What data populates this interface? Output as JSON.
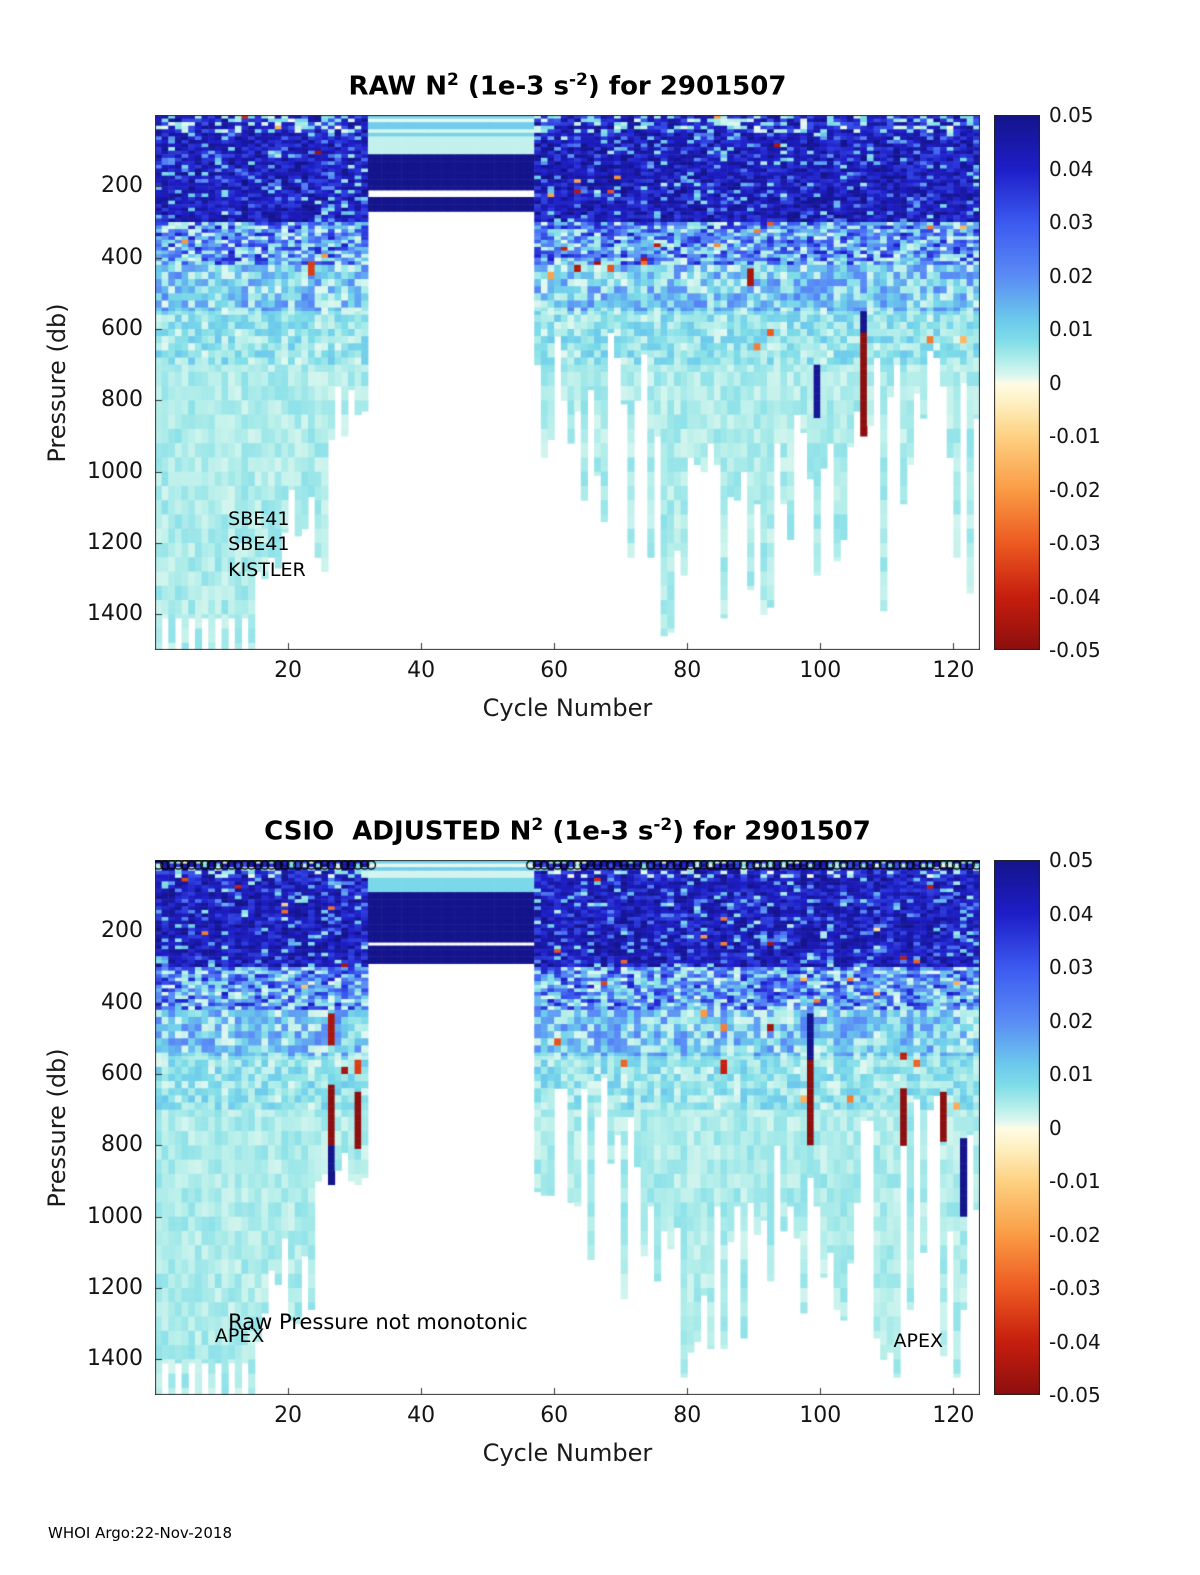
{
  "footer": {
    "text": "WHOI Argo:22-Nov-2018"
  },
  "colormap": {
    "vmin": -0.05,
    "vmax": 0.05,
    "stops": [
      {
        "v": 0.05,
        "color": "#14148C"
      },
      {
        "v": 0.04,
        "color": "#1E1EC8"
      },
      {
        "v": 0.03,
        "color": "#3C5AF0"
      },
      {
        "v": 0.02,
        "color": "#5A8CF5"
      },
      {
        "v": 0.012,
        "color": "#6CC8EC"
      },
      {
        "v": 0.008,
        "color": "#7FDDE8"
      },
      {
        "v": 0.004,
        "color": "#B4EEEA"
      },
      {
        "v": 0.001,
        "color": "#E2F8F0"
      },
      {
        "v": 0.0,
        "color": "#FFFCE6"
      },
      {
        "v": -0.004,
        "color": "#FEEFBE"
      },
      {
        "v": -0.01,
        "color": "#FDD182"
      },
      {
        "v": -0.02,
        "color": "#FA9B45"
      },
      {
        "v": -0.03,
        "color": "#ED5A21"
      },
      {
        "v": -0.04,
        "color": "#C61E0E"
      },
      {
        "v": -0.05,
        "color": "#8C0E0E"
      }
    ]
  },
  "chart_data": [
    {
      "type": "heatmap",
      "title_parts": {
        "pre": "RAW N",
        "sup1": "2",
        "mid": " (1e-3 s",
        "sup2": "-2",
        "post": ") for 2901507"
      },
      "xlabel": "Cycle Number",
      "ylabel": "Pressure (db)",
      "xlim": [
        0,
        124
      ],
      "ylim": [
        0,
        1500
      ],
      "y_axis_reversed": true,
      "grid": false,
      "x_ticks": [
        20,
        40,
        60,
        80,
        100,
        120
      ],
      "y_ticks": [
        200,
        400,
        600,
        800,
        1000,
        1200,
        1400
      ],
      "colorbar_ticks": [
        0.05,
        0.04,
        0.03,
        0.02,
        0.01,
        0,
        -0.01,
        -0.02,
        -0.03,
        -0.04,
        -0.05
      ],
      "legend_position": "right-colorbar",
      "annotations": [
        {
          "text": "SBE41",
          "x": 11,
          "pressure": 1135
        },
        {
          "text": "SBE41",
          "x": 11,
          "pressure": 1207
        },
        {
          "text": "KISTLER",
          "x": 11,
          "pressure": 1278
        }
      ],
      "top_marker_ranges": [],
      "value_summary": {
        "surface_0_300db": "mostly 0.035 to 0.05 (dark blue) with sparse pale and rare negative cells",
        "mid_300_550db": "0.005 to 0.04 speckled blues",
        "deep_700_1500db": "0.002 to 0.007 pale cyan, profile depth varies by cycle",
        "missing_cycles": "cycles 33-57 only sampled above ~270 db",
        "negatives": "sparse cells between -0.01 and -0.05"
      },
      "field": {
        "seed": 7,
        "gap_columns": [
          33,
          57
        ],
        "gap_stripes": [
          [
            0,
            12,
            0.01
          ],
          [
            12,
            22,
            0.001
          ],
          [
            22,
            36,
            0.011
          ],
          [
            36,
            48,
            0.002
          ],
          [
            48,
            60,
            0.01
          ],
          [
            60,
            112,
            0.003
          ],
          [
            112,
            214,
            0.05
          ],
          [
            214,
            226,
            null
          ],
          [
            226,
            266,
            0.05
          ]
        ],
        "depth_bands": [
          {
            "d0": 0,
            "d1": 50,
            "lo": 0.03,
            "hi": 0.05,
            "speckle": 0.3,
            "spLo": 0.0,
            "spHi": 0.01,
            "block": 10
          },
          {
            "d0": 50,
            "d1": 300,
            "lo": 0.034,
            "hi": 0.05,
            "speckle": 0.13,
            "spLo": 0.004,
            "spHi": 0.028,
            "block": 10
          },
          {
            "d0": 300,
            "d1": 420,
            "lo": 0.01,
            "hi": 0.04,
            "speckle": 0.3,
            "spLo": 0.001,
            "spHi": 0.008,
            "block": 10
          },
          {
            "d0": 420,
            "d1": 550,
            "lo": 0.005,
            "hi": 0.022,
            "speckle": 0.25,
            "spLo": 0.001,
            "spHi": 0.005,
            "block": 20
          },
          {
            "d0": 550,
            "d1": 700,
            "lo": 0.003,
            "hi": 0.012,
            "speckle": 0.2,
            "spLo": 0.001,
            "spHi": 0.004,
            "block": 20
          },
          {
            "d0": 700,
            "d1": 1500,
            "lo": 0.002,
            "hi": 0.007,
            "speckle": 0.0,
            "spLo": 0.0,
            "spHi": 0.0,
            "block": 40
          }
        ],
        "negative_fraction": 0.005,
        "column_depth_regions": [
          {
            "c0": 1,
            "c1": 15,
            "min": 1400,
            "max": 1500,
            "comb": true
          },
          {
            "c0": 16,
            "c1": 26,
            "min": 1050,
            "max": 1350
          },
          {
            "c0": 27,
            "c1": 32,
            "min": 760,
            "max": 920
          },
          {
            "c0": 58,
            "c1": 74,
            "min": 600,
            "max": 1250
          },
          {
            "c0": 75,
            "c1": 93,
            "min": 900,
            "max": 1500
          },
          {
            "c0": 94,
            "c1": 105,
            "min": 750,
            "max": 1300
          },
          {
            "c0": 106,
            "c1": 124,
            "min": 650,
            "max": 1450
          }
        ],
        "streaks": [
          {
            "c": 107,
            "d0": 555,
            "d1": 615,
            "v": 0.05
          },
          {
            "c": 107,
            "d0": 615,
            "d1": 900,
            "v": -0.05
          },
          {
            "c": 100,
            "d0": 700,
            "d1": 855,
            "v": 0.048
          },
          {
            "c": 24,
            "d0": 408,
            "d1": 452,
            "v": -0.035
          },
          {
            "c": 90,
            "d0": 432,
            "d1": 478,
            "v": -0.045
          }
        ]
      }
    },
    {
      "type": "heatmap",
      "title_parts": {
        "pre": "CSIO  ADJUSTED N",
        "sup1": "2",
        "mid": " (1e-3 s",
        "sup2": "-2",
        "post": ") for 2901507"
      },
      "xlabel": "Cycle Number",
      "ylabel": "Pressure (db)",
      "xlim": [
        0,
        124
      ],
      "ylim": [
        0,
        1500
      ],
      "y_axis_reversed": true,
      "grid": false,
      "x_ticks": [
        20,
        40,
        60,
        80,
        100,
        120
      ],
      "y_ticks": [
        200,
        400,
        600,
        800,
        1000,
        1200,
        1400
      ],
      "colorbar_ticks": [
        0.05,
        0.04,
        0.03,
        0.02,
        0.01,
        0,
        -0.01,
        -0.02,
        -0.03,
        -0.04,
        -0.05
      ],
      "legend_position": "right-colorbar",
      "annotations": [
        {
          "text": "Raw Pressure not monotonic",
          "x": 11,
          "pressure": 1295,
          "size": 21
        },
        {
          "text": "APEX",
          "x": 9,
          "pressure": 1338
        },
        {
          "text": "APEX",
          "x": 111,
          "pressure": 1352
        }
      ],
      "top_marker_ranges": [
        [
          1,
          33
        ],
        [
          57,
          124
        ]
      ],
      "value_summary": {
        "surface_0_300db": "mostly 0.035 to 0.05 (dark blue) with sparse pale cells",
        "mid_300_550db": "0.005 to 0.04 speckled blues",
        "deep_700_1500db": "0.002 to 0.007 pale cyan, profile depth varies by cycle",
        "missing_cycles": "cycles 33-57 only sampled above ~285 db",
        "negatives": "sparse cells and several vertical streaks between -0.03 and -0.05"
      },
      "field": {
        "seed": 13,
        "gap_columns": [
          33,
          57
        ],
        "gap_stripes": [
          [
            0,
            10,
            0.01
          ],
          [
            10,
            20,
            0.001
          ],
          [
            20,
            34,
            0.011
          ],
          [
            34,
            46,
            0.002
          ],
          [
            46,
            88,
            0.009
          ],
          [
            88,
            234,
            0.05
          ],
          [
            234,
            245,
            null
          ],
          [
            245,
            286,
            0.05
          ]
        ],
        "depth_bands": [
          {
            "d0": 0,
            "d1": 50,
            "lo": 0.03,
            "hi": 0.05,
            "speckle": 0.3,
            "spLo": 0.0,
            "spHi": 0.01,
            "block": 10
          },
          {
            "d0": 50,
            "d1": 300,
            "lo": 0.034,
            "hi": 0.05,
            "speckle": 0.13,
            "spLo": 0.004,
            "spHi": 0.028,
            "block": 10
          },
          {
            "d0": 300,
            "d1": 420,
            "lo": 0.01,
            "hi": 0.04,
            "speckle": 0.3,
            "spLo": 0.001,
            "spHi": 0.008,
            "block": 10
          },
          {
            "d0": 420,
            "d1": 550,
            "lo": 0.005,
            "hi": 0.022,
            "speckle": 0.25,
            "spLo": 0.001,
            "spHi": 0.005,
            "block": 20
          },
          {
            "d0": 550,
            "d1": 700,
            "lo": 0.003,
            "hi": 0.012,
            "speckle": 0.2,
            "spLo": 0.001,
            "spHi": 0.004,
            "block": 20
          },
          {
            "d0": 700,
            "d1": 1500,
            "lo": 0.002,
            "hi": 0.007,
            "speckle": 0.0,
            "spLo": 0.0,
            "spHi": 0.0,
            "block": 40
          }
        ],
        "negative_fraction": 0.005,
        "column_depth_regions": [
          {
            "c0": 1,
            "c1": 15,
            "min": 1400,
            "max": 1500,
            "comb": true
          },
          {
            "c0": 16,
            "c1": 24,
            "min": 1050,
            "max": 1350
          },
          {
            "c0": 25,
            "c1": 32,
            "min": 800,
            "max": 950
          },
          {
            "c0": 58,
            "c1": 74,
            "min": 600,
            "max": 1280
          },
          {
            "c0": 75,
            "c1": 93,
            "min": 950,
            "max": 1500
          },
          {
            "c0": 94,
            "c1": 105,
            "min": 780,
            "max": 1320
          },
          {
            "c0": 106,
            "c1": 124,
            "min": 650,
            "max": 1460
          }
        ],
        "streaks": [
          {
            "c": 27,
            "d0": 430,
            "d1": 520,
            "v": -0.045
          },
          {
            "c": 27,
            "d0": 630,
            "d1": 800,
            "v": -0.05
          },
          {
            "c": 27,
            "d0": 800,
            "d1": 915,
            "v": 0.05
          },
          {
            "c": 31,
            "d0": 560,
            "d1": 600,
            "v": -0.035
          },
          {
            "c": 31,
            "d0": 650,
            "d1": 810,
            "v": -0.05
          },
          {
            "c": 99,
            "d0": 430,
            "d1": 560,
            "v": 0.05
          },
          {
            "c": 99,
            "d0": 560,
            "d1": 800,
            "v": -0.05
          },
          {
            "c": 86,
            "d0": 560,
            "d1": 600,
            "v": -0.04
          },
          {
            "c": 113,
            "d0": 640,
            "d1": 800,
            "v": -0.05
          },
          {
            "c": 119,
            "d0": 650,
            "d1": 790,
            "v": -0.05
          },
          {
            "c": 122,
            "d0": 780,
            "d1": 1000,
            "v": 0.05
          }
        ]
      }
    }
  ]
}
